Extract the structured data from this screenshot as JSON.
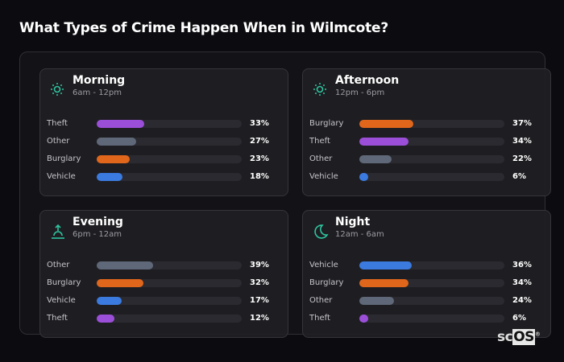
{
  "title": "What Types of Crime Happen When in Wilmcote?",
  "colors": {
    "Theft": "#9b4fd8",
    "Other": "#5f6878",
    "Burglary": "#e0661b",
    "Vehicle": "#3b7ade",
    "accent": "#2ec4a0"
  },
  "periods": [
    {
      "name": "Morning",
      "range": "6am - 12pm",
      "icon": "sun-icon",
      "rows": [
        {
          "label": "Theft",
          "pct": 33,
          "text": "33%"
        },
        {
          "label": "Other",
          "pct": 27,
          "text": "27%"
        },
        {
          "label": "Burglary",
          "pct": 23,
          "text": "23%"
        },
        {
          "label": "Vehicle",
          "pct": 18,
          "text": "18%"
        }
      ]
    },
    {
      "name": "Afternoon",
      "range": "12pm - 6pm",
      "icon": "sun-icon",
      "rows": [
        {
          "label": "Burglary",
          "pct": 37,
          "text": "37%"
        },
        {
          "label": "Theft",
          "pct": 34,
          "text": "34%"
        },
        {
          "label": "Other",
          "pct": 22,
          "text": "22%"
        },
        {
          "label": "Vehicle",
          "pct": 6,
          "text": "6%"
        }
      ]
    },
    {
      "name": "Evening",
      "range": "6pm - 12am",
      "icon": "sunset-icon",
      "rows": [
        {
          "label": "Other",
          "pct": 39,
          "text": "39%"
        },
        {
          "label": "Burglary",
          "pct": 32,
          "text": "32%"
        },
        {
          "label": "Vehicle",
          "pct": 17,
          "text": "17%"
        },
        {
          "label": "Theft",
          "pct": 12,
          "text": "12%"
        }
      ]
    },
    {
      "name": "Night",
      "range": "12am - 6am",
      "icon": "moon-icon",
      "rows": [
        {
          "label": "Vehicle",
          "pct": 36,
          "text": "36%"
        },
        {
          "label": "Burglary",
          "pct": 34,
          "text": "34%"
        },
        {
          "label": "Other",
          "pct": 24,
          "text": "24%"
        },
        {
          "label": "Theft",
          "pct": 6,
          "text": "6%"
        }
      ]
    }
  ],
  "logo": {
    "sc": "sc",
    "os": "OS",
    "mark": "®"
  }
}
